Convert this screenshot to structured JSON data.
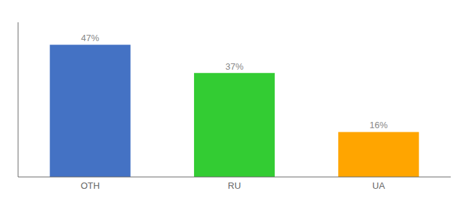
{
  "chart_data": {
    "type": "bar",
    "categories": [
      "OTH",
      "RU",
      "UA"
    ],
    "values": [
      47,
      37,
      16
    ],
    "value_labels": [
      "47%",
      "37%",
      "16%"
    ],
    "colors": [
      "#4472C4",
      "#33CC33",
      "#FFA500"
    ],
    "ylim": [
      0,
      55
    ],
    "data_labels": true,
    "tick_labels": "x",
    "grid": false
  }
}
